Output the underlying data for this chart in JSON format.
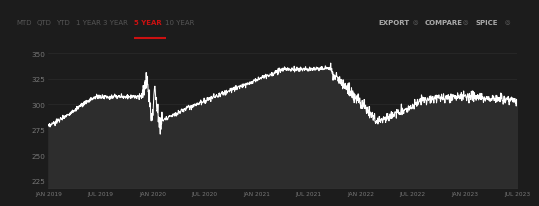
{
  "background_color": "#1c1c1c",
  "plot_bg_color": "#1c1c1c",
  "line_color": "#ffffff",
  "fill_color": "#2a2a2a",
  "grid_color": "#333333",
  "header_bg_color": "#141414",
  "tab_items": [
    "MTD",
    "QTD",
    "YTD",
    "1 YEAR",
    "3 YEAR",
    "5 YEAR",
    "10 YEAR"
  ],
  "active_tab": "5 YEAR",
  "active_tab_color": "#cc1111",
  "right_items": [
    "EXPORT",
    "COMPARE",
    "SPICE"
  ],
  "yticks": [
    225,
    250,
    275,
    300,
    325,
    350
  ],
  "xtick_labels": [
    "JAN 2019",
    "JUL 2019",
    "JAN 2020",
    "JUL 2020",
    "JAN 2021",
    "JUL 2021",
    "JAN 2022",
    "JUL 2022",
    "JAN 2023",
    "JUL 2023"
  ],
  "ylim": [
    218,
    358
  ],
  "text_color": "#777777",
  "tab_text_color": "#555555",
  "active_tab_text_color": "#cc1111"
}
